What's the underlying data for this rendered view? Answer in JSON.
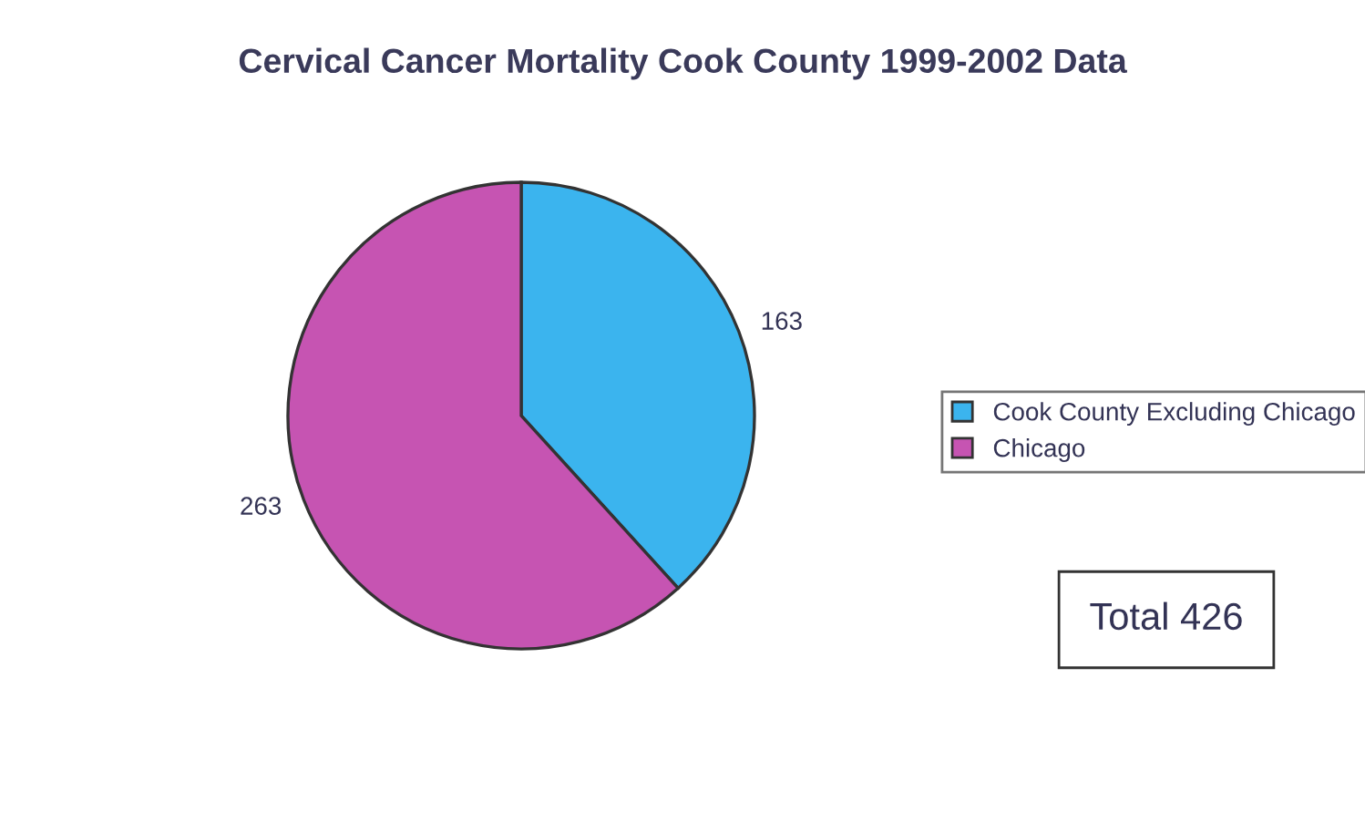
{
  "chart_data": {
    "type": "pie",
    "title": "Cervical Cancer Mortality Cook County 1999-2002 Data",
    "categories": [
      "Cook County Excluding Chicago",
      "Chicago"
    ],
    "values": [
      163,
      263
    ],
    "colors": [
      "#3bb4ee",
      "#c654b2"
    ],
    "data_labels": true,
    "legend": "right",
    "annotations": [
      "Total 426"
    ]
  }
}
